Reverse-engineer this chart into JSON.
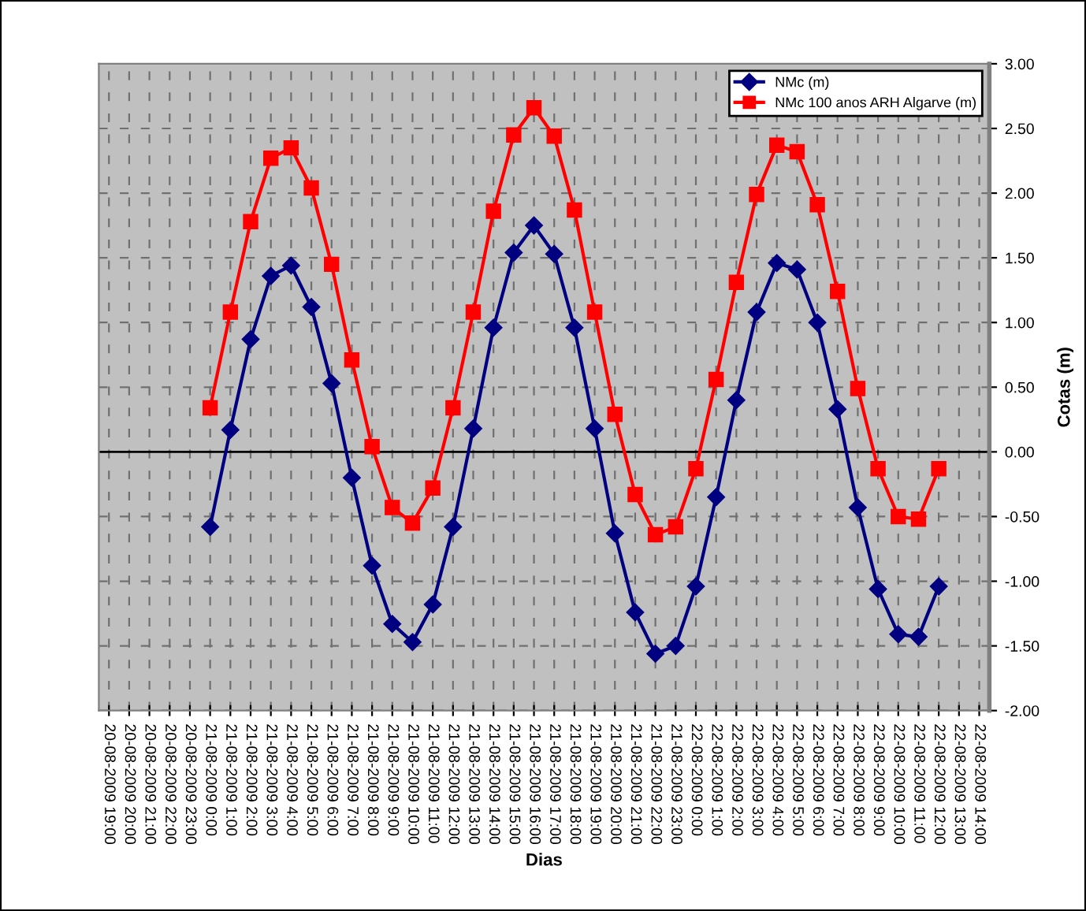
{
  "chart_data": {
    "type": "line",
    "xlabel": "Dias",
    "ylabel": "Cotas (m)",
    "categories": [
      "20-08-2009 19:00",
      "20-08-2009 20:00",
      "20-08-2009 21:00",
      "20-08-2009 22:00",
      "20-08-2009 23:00",
      "21-08-2009 0:00",
      "21-08-2009 1:00",
      "21-08-2009 2:00",
      "21-08-2009 3:00",
      "21-08-2009 4:00",
      "21-08-2009 5:00",
      "21-08-2009 6:00",
      "21-08-2009 7:00",
      "21-08-2009 8:00",
      "21-08-2009 9:00",
      "21-08-2009 10:00",
      "21-08-2009 11:00",
      "21-08-2009 12:00",
      "21-08-2009 13:00",
      "21-08-2009 14:00",
      "21-08-2009 15:00",
      "21-08-2009 16:00",
      "21-08-2009 17:00",
      "21-08-2009 18:00",
      "21-08-2009 19:00",
      "21-08-2009 20:00",
      "21-08-2009 21:00",
      "21-08-2009 22:00",
      "21-08-2009 23:00",
      "22-08-2009 0:00",
      "22-08-2009 1:00",
      "22-08-2009 2:00",
      "22-08-2009 3:00",
      "22-08-2009 4:00",
      "22-08-2009 5:00",
      "22-08-2009 6:00",
      "22-08-2009 7:00",
      "22-08-2009 8:00",
      "22-08-2009 9:00",
      "22-08-2009 10:00",
      "22-08-2009 11:00",
      "22-08-2009 12:00",
      "22-08-2009 13:00",
      "22-08-2009 14:00"
    ],
    "series": [
      {
        "name": "NMc (m)",
        "color": "#000080",
        "marker": "diamond",
        "values": [
          null,
          null,
          null,
          null,
          null,
          -0.58,
          0.17,
          0.87,
          1.36,
          1.44,
          1.12,
          0.53,
          -0.2,
          -0.88,
          -1.33,
          -1.47,
          -1.18,
          -0.58,
          0.18,
          0.96,
          1.54,
          1.75,
          1.53,
          0.96,
          0.18,
          -0.63,
          -1.24,
          -1.56,
          -1.5,
          -1.04,
          -0.35,
          0.4,
          1.08,
          1.46,
          1.41,
          1.0,
          0.33,
          -0.43,
          -1.06,
          -1.41,
          -1.43,
          -1.04,
          null,
          null
        ]
      },
      {
        "name": "NMc 100 anos ARH Algarve (m)",
        "color": "#ff0000",
        "marker": "square",
        "values": [
          null,
          null,
          null,
          null,
          null,
          0.34,
          1.08,
          1.78,
          2.27,
          2.35,
          2.04,
          1.45,
          0.71,
          0.04,
          -0.43,
          -0.55,
          -0.28,
          0.34,
          1.08,
          1.86,
          2.45,
          2.66,
          2.44,
          1.87,
          1.08,
          0.29,
          -0.33,
          -0.64,
          -0.58,
          -0.13,
          0.56,
          1.31,
          1.99,
          2.37,
          2.32,
          1.91,
          1.24,
          0.49,
          -0.13,
          -0.5,
          -0.52,
          -0.13,
          null,
          null
        ]
      }
    ],
    "ylim": [
      -2,
      3
    ],
    "yticks": [
      {
        "value": -2,
        "label": "-2.00"
      },
      {
        "value": -1.5,
        "label": "-1.50"
      },
      {
        "value": -1,
        "label": "-1.00"
      },
      {
        "value": -0.5,
        "label": "-0.50"
      },
      {
        "value": 0,
        "label": "0.00"
      },
      {
        "value": 0.5,
        "label": "0.50"
      },
      {
        "value": 1,
        "label": "1.00"
      },
      {
        "value": 1.5,
        "label": "1.50"
      },
      {
        "value": 2,
        "label": "2.00"
      },
      {
        "value": 2.5,
        "label": "2.50"
      },
      {
        "value": 3,
        "label": "3.00"
      }
    ],
    "grid": true,
    "legend": "top right",
    "line_style": "solid"
  }
}
